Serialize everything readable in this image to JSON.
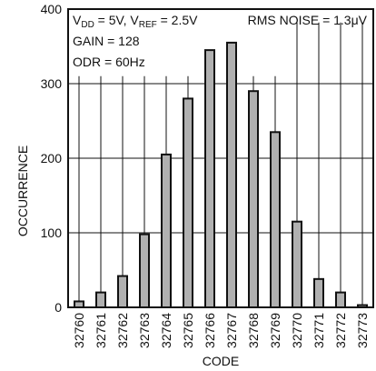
{
  "chart_data": {
    "type": "bar",
    "title": "",
    "xlabel": "CODE",
    "ylabel": "OCCURRENCE",
    "categories": [
      "32760",
      "32761",
      "32762",
      "32763",
      "32764",
      "32765",
      "32766",
      "32767",
      "32768",
      "32769",
      "32770",
      "32771",
      "32772",
      "32773"
    ],
    "values": [
      8,
      20,
      42,
      98,
      205,
      280,
      345,
      355,
      290,
      235,
      115,
      38,
      20,
      3
    ],
    "ylim": [
      0,
      400
    ],
    "yticks": [
      "0",
      "100",
      "200",
      "300",
      "400"
    ],
    "grid": true,
    "bar_color": "#b0b0b0",
    "annotations": {
      "supply_prefix": "V",
      "supply_sub": "DD",
      "supply_value": " = 5V, V",
      "ref_sub": "REF",
      "ref_value": " = 2.5V",
      "gain": "GAIN = 128",
      "odr": "ODR = 60Hz",
      "noise": "RMS NOISE = 1.3μV"
    }
  }
}
